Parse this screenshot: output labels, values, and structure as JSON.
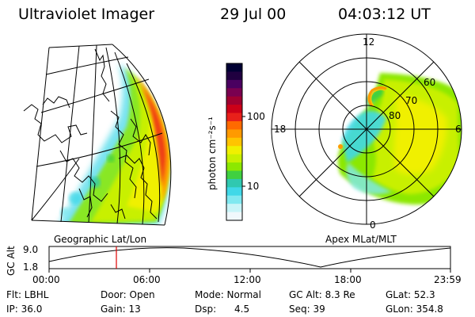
{
  "header": {
    "instrument": "Ultraviolet Imager",
    "date": "29 Jul 00",
    "time": "04:03:12 UT"
  },
  "colorbar": {
    "label": "photon cm⁻²s⁻¹",
    "ticks": [
      "100",
      "10"
    ],
    "colors": [
      "#000033",
      "#200040",
      "#4a0060",
      "#7a0050",
      "#a00030",
      "#cc0018",
      "#e8201a",
      "#ff6a00",
      "#ff9a00",
      "#ffc400",
      "#f0f000",
      "#c8f000",
      "#8ce800",
      "#40d040",
      "#30c8b0",
      "#40d8e8",
      "#80e8f0",
      "#c8f4f8",
      "#f0f8fc"
    ]
  },
  "left_panel": {
    "caption": "Geographic Lat/Lon"
  },
  "right_panel": {
    "caption": "Apex MLat/MLT",
    "mlt_labels": {
      "top": "12",
      "left": "18",
      "right": "6",
      "bottom": "0"
    },
    "lat_labels": [
      "60",
      "70",
      "80"
    ]
  },
  "altitude_plot": {
    "axis_label": "GC Alt",
    "y_ticks": [
      "9.0",
      "1.8"
    ],
    "x_ticks": [
      "00:00",
      "06:00",
      "12:00",
      "18:00",
      "23:59"
    ],
    "marker_color": "#e00000"
  },
  "status": {
    "flt": "Flt: LBHL",
    "door": "Door: Open",
    "mode": "Mode: Normal",
    "gc_alt": "GC Alt: 8.3 Re",
    "glat": "GLat: 52.3",
    "ip": "IP: 36.0",
    "gain": "Gain: 13",
    "dsp": "Dsp:      4.5",
    "seq": "Seq: 39",
    "glon": "GLon: 354.8"
  }
}
